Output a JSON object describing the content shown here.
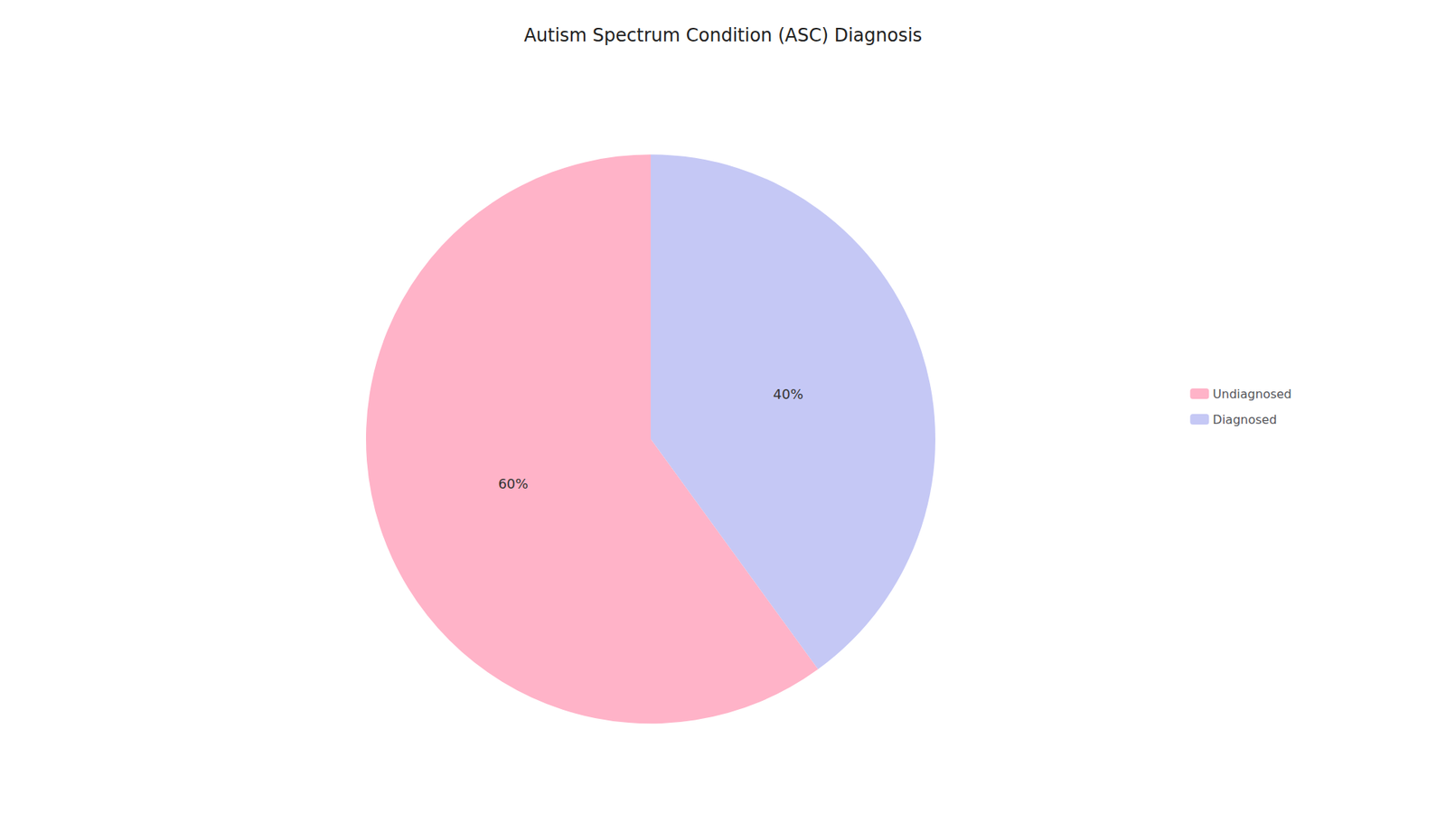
{
  "chart_data": {
    "type": "pie",
    "title": "Autism Spectrum Condition (ASC) Diagnosis",
    "categories": [
      "Diagnosed",
      "Undiagnosed"
    ],
    "values": [
      40,
      60
    ],
    "value_labels": [
      "40%",
      "60%"
    ],
    "colors": [
      "#C5C8F5",
      "#FFB3C8"
    ],
    "data_labels": true,
    "legend": "right"
  }
}
